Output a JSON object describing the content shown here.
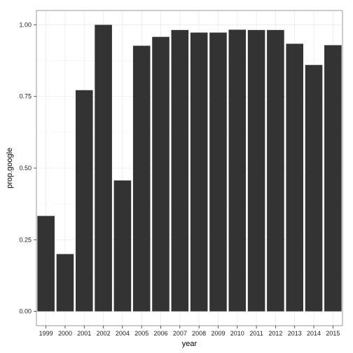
{
  "chart_data": {
    "type": "bar",
    "xlabel": "year",
    "ylabel": "prop.google",
    "categories": [
      "1999",
      "2000",
      "2001",
      "2002",
      "2004",
      "2005",
      "2006",
      "2007",
      "2008",
      "2009",
      "2010",
      "2011",
      "2012",
      "2013",
      "2014",
      "2015"
    ],
    "values": [
      0.333,
      0.2,
      0.772,
      1.0,
      0.457,
      0.927,
      0.958,
      0.982,
      0.973,
      0.973,
      0.983,
      0.982,
      0.982,
      0.934,
      0.86,
      0.929
    ],
    "ylim": [
      -0.05,
      1.05
    ],
    "yticks": [
      0.0,
      0.25,
      0.5,
      0.75,
      1.0
    ],
    "ytick_labels": [
      "0.00",
      "0.25",
      "0.50",
      "0.75",
      "1.00"
    ],
    "grid": true,
    "colors": {
      "bar": "#333333",
      "panel_border": "#7f7f7f",
      "grid_major": "#ebebeb",
      "grid_minor": "#f5f5f5"
    }
  }
}
